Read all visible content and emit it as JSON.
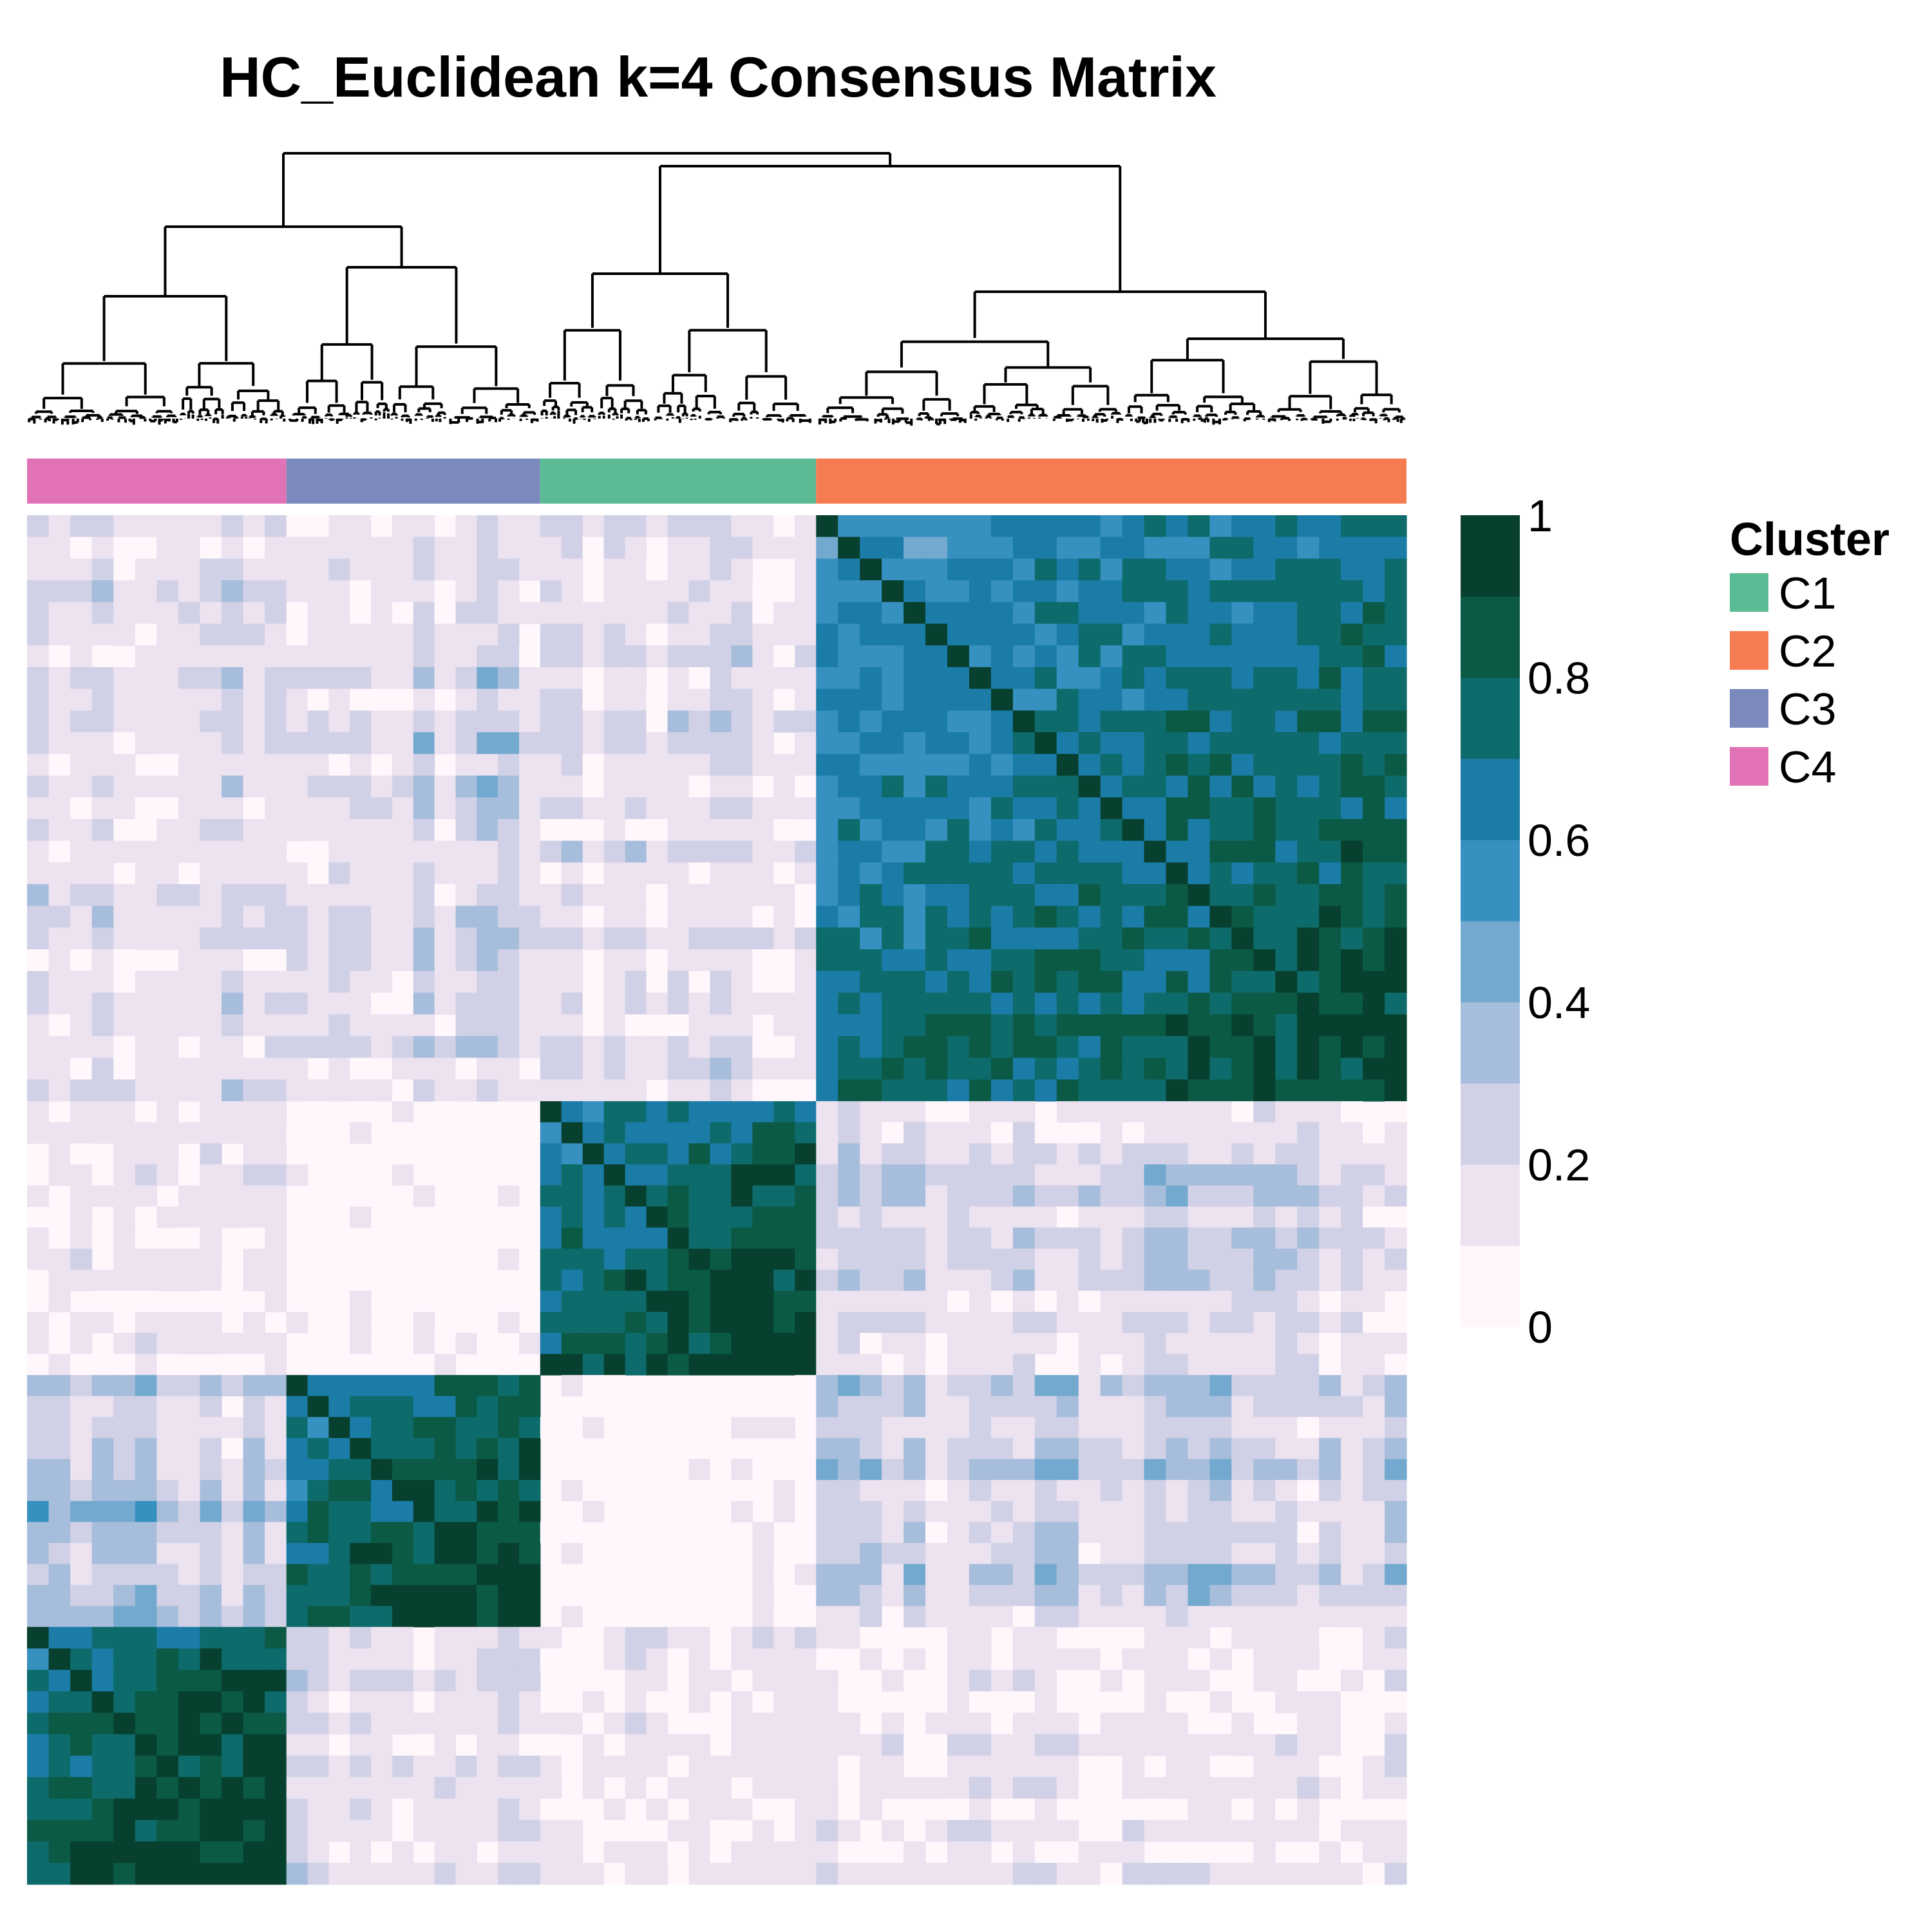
{
  "chart_data": {
    "type": "heatmap",
    "title": "HC_Euclidean k=4 Consensus Matrix",
    "value_range": [
      0,
      1
    ],
    "colorbar": {
      "ticks": [
        {
          "value": 0,
          "label": "0"
        },
        {
          "value": 0.2,
          "label": "0.2"
        },
        {
          "value": 0.4,
          "label": "0.4"
        },
        {
          "value": 0.6,
          "label": "0.6"
        },
        {
          "value": 0.8,
          "label": "0.8"
        },
        {
          "value": 1,
          "label": "1"
        }
      ],
      "bins": 10,
      "colors": [
        "#fff7fb",
        "#ece2f0",
        "#d0d1e6",
        "#a6bddb",
        "#74a9cf",
        "#3690c0",
        "#1c7ca8",
        "#0e6b6b",
        "#0b5a45",
        "#07402e"
      ]
    },
    "legend": {
      "title": "Cluster",
      "position": "right",
      "items": [
        {
          "label": "C1",
          "color": "#5bbb94"
        },
        {
          "label": "C2",
          "color": "#f57b51"
        },
        {
          "label": "C3",
          "color": "#7b89bd"
        },
        {
          "label": "C4",
          "color": "#e072b5"
        }
      ]
    },
    "column_annotation_order": [
      {
        "cluster": "C4",
        "fraction": 0.188
      },
      {
        "cluster": "C3",
        "fraction": 0.184
      },
      {
        "cluster": "C1",
        "fraction": 0.2
      },
      {
        "cluster": "C2",
        "fraction": 0.428
      }
    ],
    "row_blocks_top_to_bottom": [
      {
        "cluster": "C2",
        "fraction": 0.428
      },
      {
        "cluster": "C1",
        "fraction": 0.2
      },
      {
        "cluster": "C3",
        "fraction": 0.184
      },
      {
        "cluster": "C4",
        "fraction": 0.188
      }
    ],
    "block_consensus": {
      "C2": {
        "C2": 0.72,
        "C1": 0.18,
        "C3": 0.22,
        "C4": 0.16
      },
      "C1": {
        "C2": 0.2,
        "C1": 0.82,
        "C3": 0.06,
        "C4": 0.1
      },
      "C3": {
        "C2": 0.24,
        "C1": 0.06,
        "C3": 0.82,
        "C4": 0.3
      },
      "C4": {
        "C2": 0.12,
        "C1": 0.1,
        "C3": 0.2,
        "C4": 0.86
      }
    },
    "dendrogram": "top"
  }
}
